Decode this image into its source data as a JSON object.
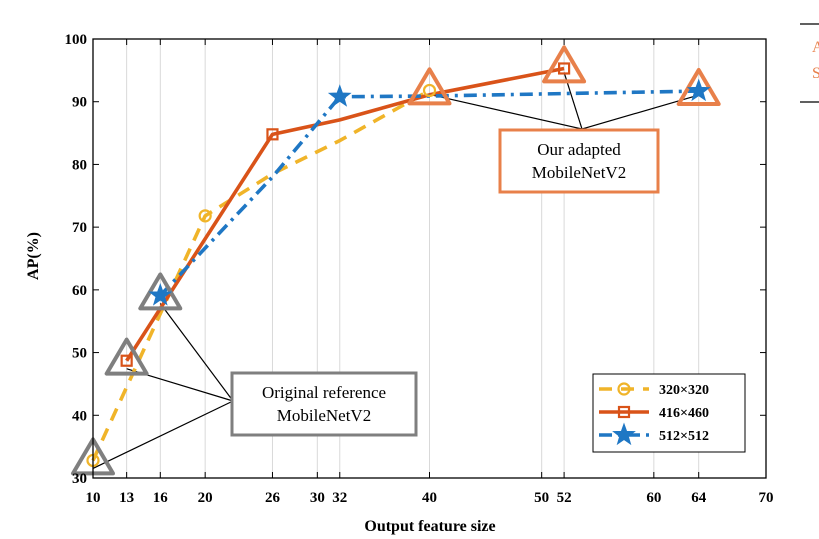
{
  "chart_data": {
    "type": "line",
    "xlabel": "Output feature size",
    "ylabel": "AP(%)",
    "xlim": [
      10,
      70
    ],
    "ylim": [
      30,
      100
    ],
    "x_ticks": [
      10,
      13,
      16,
      20,
      26,
      30,
      32,
      40,
      50,
      52,
      60,
      64,
      70
    ],
    "x_tick_labels": [
      "10",
      "13",
      "16",
      "20",
      "26",
      "30",
      "32",
      "40",
      "50",
      "52",
      "60",
      "64",
      "70"
    ],
    "y_ticks": [
      30,
      40,
      50,
      60,
      70,
      80,
      90,
      100
    ],
    "y_tick_labels": [
      "30",
      "40",
      "50",
      "60",
      "70",
      "80",
      "90",
      "100"
    ],
    "grid": "vertical",
    "legend_position": "bottom-right",
    "series": [
      {
        "name": "320×320",
        "color": "#F0B429",
        "line_style": "dashed",
        "marker": "circle",
        "x": [
          10,
          20,
          40
        ],
        "y": [
          32.8,
          71.8,
          91.8
        ],
        "path_x": [
          10,
          20,
          26,
          32,
          40
        ],
        "path_y": [
          32.8,
          71.8,
          78.5,
          83.8,
          91.8
        ]
      },
      {
        "name": "416×460",
        "color": "#D95319",
        "line_style": "solid",
        "marker": "square",
        "x": [
          13,
          26,
          52
        ],
        "y": [
          48.7,
          84.8,
          95.3
        ],
        "path_x": [
          13,
          26,
          32,
          40,
          52
        ],
        "path_y": [
          48.7,
          84.8,
          87.1,
          91.1,
          95.3
        ]
      },
      {
        "name": "512×512",
        "color": "#1F77C4",
        "line_style": "dashdot",
        "marker": "star",
        "x": [
          16,
          32,
          64
        ],
        "y": [
          59.1,
          90.8,
          91.7
        ],
        "path_x": [
          16,
          26,
          32,
          40,
          52,
          64
        ],
        "path_y": [
          59.1,
          78.0,
          90.8,
          90.9,
          91.3,
          91.7
        ]
      }
    ],
    "annotations": [
      {
        "id": "original",
        "text_lines": [
          "Original reference",
          "MobileNetV2"
        ],
        "border_color": "#7F7F7F",
        "highlight_color": "#7F7F7F",
        "targets": [
          [
            10,
            32.8
          ],
          [
            13,
            48.7
          ],
          [
            16,
            59.1
          ]
        ]
      },
      {
        "id": "adapted",
        "text_lines": [
          "Our adapted",
          "MobileNetV2"
        ],
        "border_color": "#E8804A",
        "highlight_color": "#E8804A",
        "targets": [
          [
            40,
            91.8
          ],
          [
            52,
            95.3
          ],
          [
            64,
            91.7
          ]
        ]
      }
    ],
    "side_legend": {
      "color": "#E8804A",
      "glyphs": [
        "A",
        "S"
      ]
    }
  }
}
